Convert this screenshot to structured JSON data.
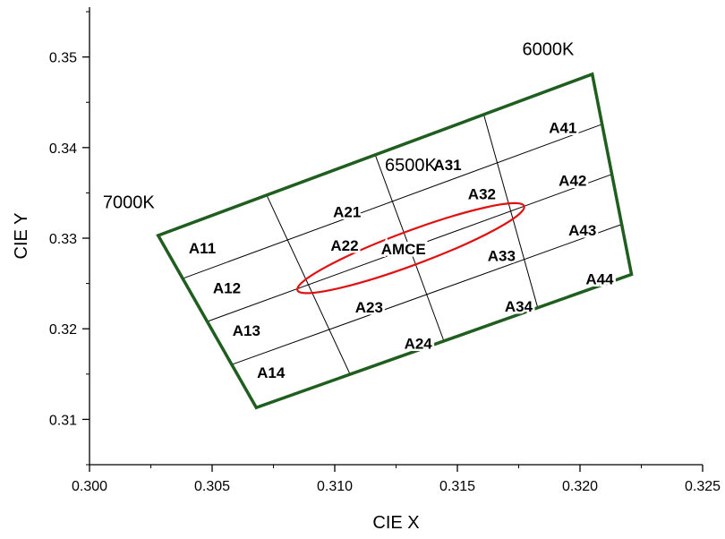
{
  "chart_data": {
    "type": "scatter",
    "title": "",
    "xlabel": "CIE X",
    "ylabel": "CIE Y",
    "xlim": [
      0.3,
      0.325
    ],
    "ylim": [
      0.305,
      0.3555
    ],
    "x_ticks": [
      {
        "value": 0.3,
        "label": "0.300"
      },
      {
        "value": 0.305,
        "label": "0.305"
      },
      {
        "value": 0.31,
        "label": "0.310"
      },
      {
        "value": 0.315,
        "label": "0.315"
      },
      {
        "value": 0.32,
        "label": "0.320"
      },
      {
        "value": 0.325,
        "label": "0.325"
      }
    ],
    "y_ticks": [
      {
        "value": 0.31,
        "label": "0.31"
      },
      {
        "value": 0.32,
        "label": "0.32"
      },
      {
        "value": 0.33,
        "label": "0.33"
      },
      {
        "value": 0.34,
        "label": "0.34"
      },
      {
        "value": 0.35,
        "label": "0.35"
      }
    ],
    "grid": false,
    "boundary": {
      "color": "#1f5e1f",
      "corners": {
        "top_left": [
          0.3028,
          0.3303
        ],
        "top_right": [
          0.3205,
          0.3481
        ],
        "bottom_right": [
          0.3221,
          0.326
        ],
        "bottom_left": [
          0.3068,
          0.3113
        ]
      }
    },
    "cct_labels": [
      {
        "text": "7000K",
        "x": 0.3016,
        "y": 0.3333
      },
      {
        "text": "6500K",
        "x": 0.3131,
        "y": 0.3374
      },
      {
        "text": "6000K",
        "x": 0.3187,
        "y": 0.3502
      }
    ],
    "grid_divisions": 4,
    "regions": [
      {
        "name": "A11",
        "x": 0.3046,
        "y": 0.3289
      },
      {
        "name": "A12",
        "x": 0.3056,
        "y": 0.3245
      },
      {
        "name": "A13",
        "x": 0.3064,
        "y": 0.3198
      },
      {
        "name": "A14",
        "x": 0.3074,
        "y": 0.3152
      },
      {
        "name": "A21",
        "x": 0.3105,
        "y": 0.3329
      },
      {
        "name": "A22",
        "x": 0.3104,
        "y": 0.3292
      },
      {
        "name": "A23",
        "x": 0.3114,
        "y": 0.3224
      },
      {
        "name": "A24",
        "x": 0.3134,
        "y": 0.3184
      },
      {
        "name": "A31",
        "x": 0.3146,
        "y": 0.3381
      },
      {
        "name": "A32",
        "x": 0.316,
        "y": 0.3349
      },
      {
        "name": "A33",
        "x": 0.3168,
        "y": 0.3281
      },
      {
        "name": "A34",
        "x": 0.3175,
        "y": 0.3225
      },
      {
        "name": "A41",
        "x": 0.3193,
        "y": 0.3422
      },
      {
        "name": "A42",
        "x": 0.3197,
        "y": 0.3364
      },
      {
        "name": "A43",
        "x": 0.3201,
        "y": 0.3309
      },
      {
        "name": "A44",
        "x": 0.3208,
        "y": 0.3255
      }
    ],
    "ellipse": {
      "name": "AMCE",
      "color": "#e01010",
      "center": [
        0.3131,
        0.3289
      ],
      "semi_axis_x": 0.0044,
      "semi_axis_y": 0.0036,
      "label_x": 0.3128,
      "label_y": 0.3288
    }
  }
}
